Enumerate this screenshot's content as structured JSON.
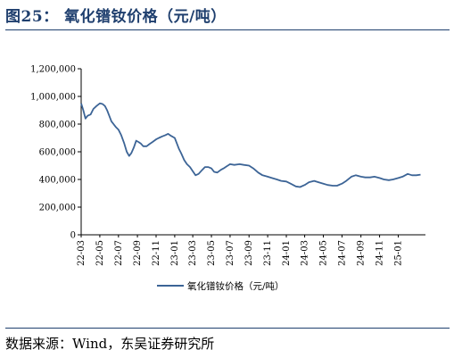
{
  "figure_title": "图25：  氧化镨钕价格（元/吨）",
  "source_text": "数据来源：Wind，东吴证券研究所",
  "colors": {
    "series": "#3c6496",
    "title": "#1f3f6e",
    "axis": "#000000"
  },
  "chart_data": {
    "type": "line",
    "ylim": [
      0,
      1200000
    ],
    "yticks": [
      0,
      200000,
      400000,
      600000,
      800000,
      1000000,
      1200000
    ],
    "ytick_labels": [
      "0",
      "200,000",
      "400,000",
      "600,000",
      "800,000",
      "1,000,000",
      "1,200,000"
    ],
    "xticks": [
      "22-03",
      "22-05",
      "22-07",
      "22-09",
      "22-11",
      "23-01",
      "23-03",
      "23-05",
      "23-07",
      "23-09",
      "23-11",
      "24-01",
      "24-03",
      "24-05",
      "24-07",
      "24-09",
      "24-11",
      "25-01"
    ],
    "legend_position": "bottom",
    "grid": false,
    "series": [
      {
        "name": "氧化镨钕价格（元/吨）",
        "x": [
          "2022-03-01",
          "2022-03-08",
          "2022-03-15",
          "2022-03-22",
          "2022-04-01",
          "2022-04-10",
          "2022-04-20",
          "2022-05-01",
          "2022-05-10",
          "2022-05-18",
          "2022-05-25",
          "2022-06-01",
          "2022-06-08",
          "2022-06-15",
          "2022-06-22",
          "2022-07-01",
          "2022-07-10",
          "2022-07-20",
          "2022-07-28",
          "2022-08-05",
          "2022-08-12",
          "2022-08-20",
          "2022-08-28",
          "2022-09-05",
          "2022-09-12",
          "2022-09-20",
          "2022-10-01",
          "2022-10-10",
          "2022-10-20",
          "2022-11-01",
          "2022-11-10",
          "2022-11-20",
          "2022-12-01",
          "2022-12-10",
          "2022-12-20",
          "2023-01-01",
          "2023-01-08",
          "2023-01-15",
          "2023-01-22",
          "2023-02-01",
          "2023-02-10",
          "2023-02-20",
          "2023-03-01",
          "2023-03-10",
          "2023-03-20",
          "2023-04-01",
          "2023-04-10",
          "2023-04-20",
          "2023-05-01",
          "2023-05-10",
          "2023-05-20",
          "2023-06-01",
          "2023-06-10",
          "2023-06-20",
          "2023-07-01",
          "2023-07-15",
          "2023-08-01",
          "2023-08-15",
          "2023-09-01",
          "2023-09-15",
          "2023-10-01",
          "2023-10-15",
          "2023-11-01",
          "2023-11-15",
          "2023-12-01",
          "2023-12-15",
          "2024-01-01",
          "2024-01-15",
          "2024-02-01",
          "2024-02-15",
          "2024-03-01",
          "2024-03-15",
          "2024-04-01",
          "2024-04-15",
          "2024-05-01",
          "2024-05-15",
          "2024-06-01",
          "2024-06-15",
          "2024-07-01",
          "2024-07-15",
          "2024-08-01",
          "2024-08-15",
          "2024-09-01",
          "2024-09-15",
          "2024-10-01",
          "2024-10-15",
          "2024-11-01",
          "2024-11-15",
          "2024-12-01",
          "2024-12-15",
          "2025-01-01",
          "2025-01-15",
          "2025-02-01",
          "2025-02-15",
          "2025-03-01",
          "2025-03-15"
        ],
        "values": [
          950000,
          900000,
          840000,
          860000,
          870000,
          910000,
          930000,
          950000,
          945000,
          930000,
          900000,
          860000,
          820000,
          800000,
          780000,
          760000,
          720000,
          660000,
          600000,
          570000,
          590000,
          630000,
          680000,
          670000,
          660000,
          640000,
          640000,
          655000,
          670000,
          690000,
          700000,
          710000,
          720000,
          730000,
          715000,
          700000,
          660000,
          620000,
          590000,
          540000,
          510000,
          490000,
          460000,
          430000,
          440000,
          470000,
          490000,
          490000,
          480000,
          455000,
          450000,
          470000,
          480000,
          495000,
          510000,
          505000,
          510000,
          505000,
          500000,
          480000,
          450000,
          430000,
          420000,
          410000,
          400000,
          390000,
          385000,
          370000,
          350000,
          345000,
          360000,
          380000,
          390000,
          380000,
          370000,
          360000,
          355000,
          355000,
          370000,
          390000,
          420000,
          430000,
          420000,
          415000,
          415000,
          420000,
          410000,
          400000,
          395000,
          400000,
          410000,
          420000,
          440000,
          430000,
          430000,
          435000
        ]
      }
    ]
  }
}
